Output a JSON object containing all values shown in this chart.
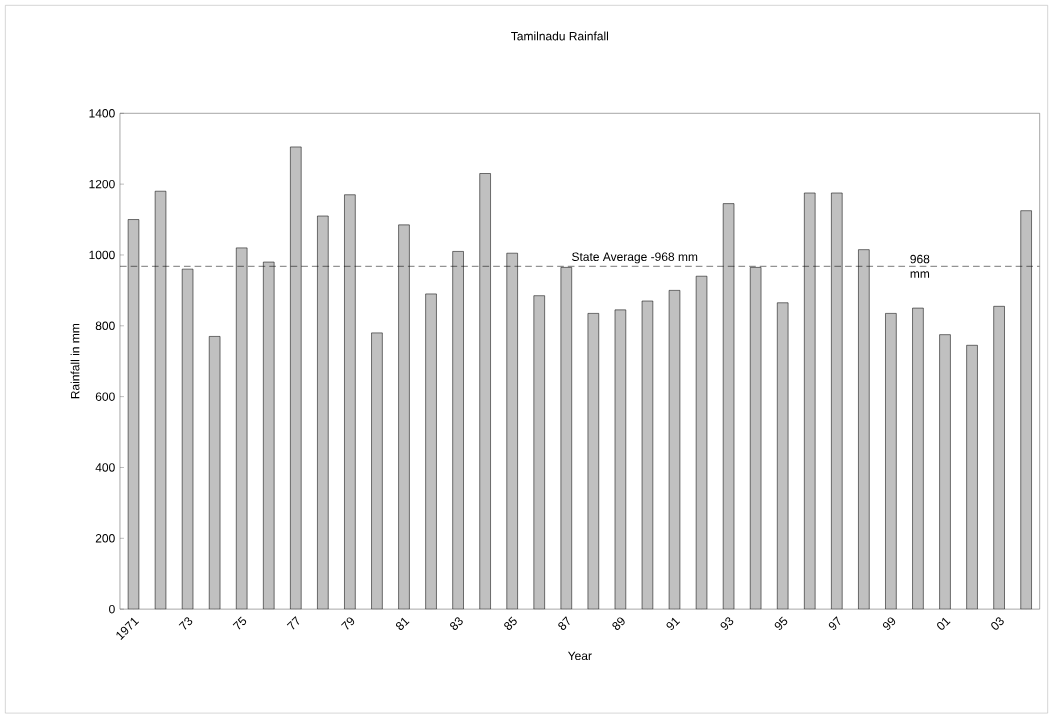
{
  "chart_data": {
    "type": "bar",
    "title": "Tamilnadu Rainfall",
    "xlabel": "Year",
    "ylabel": "Rainfall in mm",
    "categories": [
      "1971",
      null,
      "73",
      null,
      "75",
      null,
      "77",
      null,
      "79",
      null,
      "81",
      null,
      "83",
      null,
      "85",
      null,
      "87",
      null,
      "89",
      null,
      "91",
      null,
      "93",
      null,
      "95",
      null,
      "97",
      null,
      "99",
      null,
      "01",
      null,
      "03",
      null
    ],
    "values": [
      1100,
      1180,
      960,
      770,
      1020,
      980,
      1305,
      1110,
      1170,
      780,
      1085,
      890,
      1010,
      1230,
      1005,
      885,
      965,
      835,
      845,
      870,
      900,
      940,
      1145,
      965,
      865,
      1175,
      1175,
      1015,
      835,
      850,
      775,
      745,
      855,
      1125
    ],
    "color": "#c0c0c0",
    "ylim": [
      0,
      1400
    ],
    "yticks": [
      0,
      200,
      400,
      600,
      800,
      1000,
      1200,
      1400
    ],
    "ref_lines": [
      {
        "axis": "y",
        "value": 968,
        "label": "State Average -968 mm",
        "line_style": "dashed"
      }
    ],
    "annotations": [
      {
        "text": "968 mm",
        "y": 968
      }
    ]
  }
}
